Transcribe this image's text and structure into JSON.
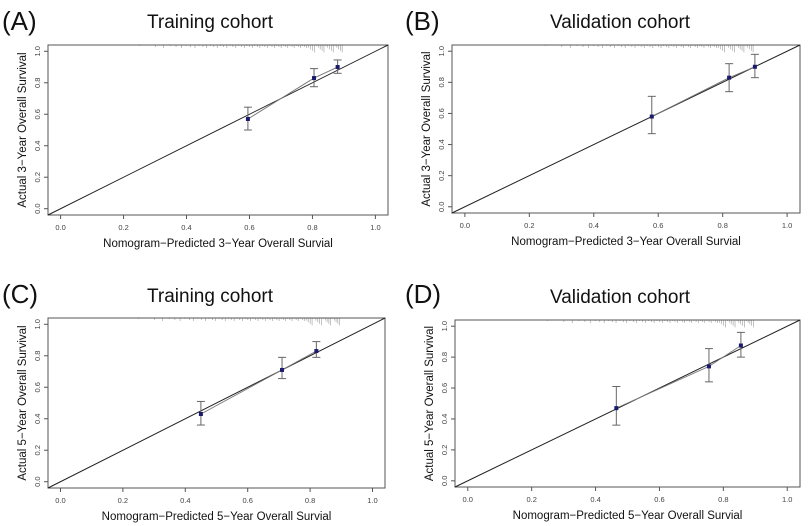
{
  "chart_data": [
    {
      "panel": "(A)",
      "type": "scatter",
      "title": "Training cohort",
      "xlabel": "Nomogram−Predicted 3−Year Overall Survial",
      "ylabel": "Actual 3−Year Overall Survival",
      "xlim": [
        -0.04,
        1.04
      ],
      "ylim": [
        -0.04,
        1.04
      ],
      "xticks": [
        "0.0",
        "0.2",
        "0.4",
        "0.6",
        "0.8",
        "1.0"
      ],
      "yticks": [
        "0.0",
        "0.2",
        "0.4",
        "0.6",
        "0.8",
        "1.0"
      ],
      "points": [
        {
          "x": 0.595,
          "y": 0.57,
          "lo": 0.5,
          "hi": 0.645
        },
        {
          "x": 0.805,
          "y": 0.83,
          "lo": 0.775,
          "hi": 0.89
        },
        {
          "x": 0.88,
          "y": 0.9,
          "lo": 0.86,
          "hi": 0.945
        }
      ],
      "reference_line": "ideal diagonal y = x"
    },
    {
      "panel": "(B)",
      "type": "scatter",
      "title": "Validation cohort",
      "xlabel": "Nomogram−Predicted 3−Year Overall Survial",
      "ylabel": "Actual 3−Year Overall Survival",
      "xlim": [
        -0.04,
        1.04
      ],
      "ylim": [
        -0.04,
        1.04
      ],
      "xticks": [
        "0.0",
        "0.2",
        "0.4",
        "0.6",
        "0.8",
        "1.0"
      ],
      "yticks": [
        "0.0",
        "0.2",
        "0.4",
        "0.6",
        "0.8",
        "1.0"
      ],
      "points": [
        {
          "x": 0.58,
          "y": 0.58,
          "lo": 0.47,
          "hi": 0.71
        },
        {
          "x": 0.82,
          "y": 0.83,
          "lo": 0.74,
          "hi": 0.92
        },
        {
          "x": 0.9,
          "y": 0.9,
          "lo": 0.83,
          "hi": 0.98
        }
      ],
      "reference_line": "ideal diagonal y = x"
    },
    {
      "panel": "(C)",
      "type": "scatter",
      "title": "Training cohort",
      "xlabel": "Nomogram−Predicted 5−Year Overall Survial",
      "ylabel": "Actual 5−Year Overall Survival",
      "xlim": [
        -0.04,
        1.04
      ],
      "ylim": [
        -0.04,
        1.04
      ],
      "xticks": [
        "0.0",
        "0.2",
        "0.4",
        "0.6",
        "0.8",
        "1.0"
      ],
      "yticks": [
        "0.0",
        "0.2",
        "0.4",
        "0.6",
        "0.8",
        "1.0"
      ],
      "points": [
        {
          "x": 0.45,
          "y": 0.43,
          "lo": 0.36,
          "hi": 0.51
        },
        {
          "x": 0.71,
          "y": 0.71,
          "lo": 0.655,
          "hi": 0.79
        },
        {
          "x": 0.82,
          "y": 0.83,
          "lo": 0.79,
          "hi": 0.89
        }
      ],
      "reference_line": "ideal diagonal y = x"
    },
    {
      "panel": "(D)",
      "type": "scatter",
      "title": "Validation cohort",
      "xlabel": "Nomogram−Predicted 5−Year Overall Survial",
      "ylabel": "Actual 5−Year Overall Survival",
      "xlim": [
        -0.04,
        1.04
      ],
      "ylim": [
        -0.04,
        1.04
      ],
      "xticks": [
        "0.0",
        "0.2",
        "0.4",
        "0.6",
        "0.8",
        "1.0"
      ],
      "yticks": [
        "0.0",
        "0.2",
        "0.4",
        "0.6",
        "0.8",
        "1.0"
      ],
      "points": [
        {
          "x": 0.465,
          "y": 0.47,
          "lo": 0.36,
          "hi": 0.61
        },
        {
          "x": 0.755,
          "y": 0.74,
          "lo": 0.64,
          "hi": 0.855
        },
        {
          "x": 0.855,
          "y": 0.875,
          "lo": 0.8,
          "hi": 0.96
        }
      ],
      "reference_line": "ideal diagonal y = x"
    }
  ],
  "colors": {
    "point": "#1a1a6e",
    "axis": "#555555",
    "errorbar": "#666666",
    "text": "#111111"
  }
}
